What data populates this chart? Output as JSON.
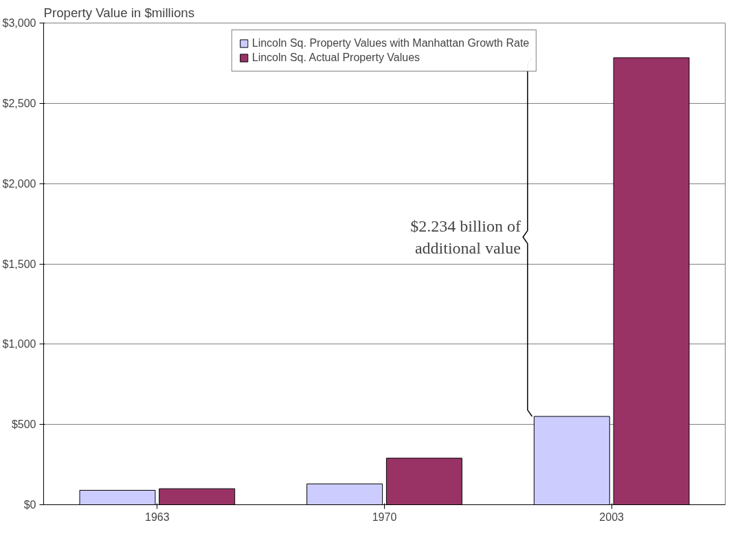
{
  "chart_data": {
    "type": "bar",
    "ylabel": "Property Value in $millions",
    "categories": [
      "1963",
      "1970",
      "2003"
    ],
    "series": [
      {
        "name": "Lincoln Sq. Property Values with Manhattan Growth Rate",
        "color": "#ccccff",
        "values": [
          90,
          130,
          550
        ]
      },
      {
        "name": "Lincoln Sq. Actual Property Values",
        "color": "#993366",
        "values": [
          100,
          290,
          2784
        ]
      }
    ],
    "ylim": [
      0,
      3000
    ],
    "yticks": [
      {
        "value": 0,
        "label": "$0"
      },
      {
        "value": 500,
        "label": "$500"
      },
      {
        "value": 1000,
        "label": "$1,000"
      },
      {
        "value": 1500,
        "label": "$1,500"
      },
      {
        "value": 2000,
        "label": "$2,000"
      },
      {
        "value": 2500,
        "label": "$2,500"
      },
      {
        "value": 3000,
        "label": "$3,000"
      }
    ],
    "grid": "y",
    "legend": "top",
    "annotations": [
      "$2.234 billion of\nadditional value"
    ]
  }
}
